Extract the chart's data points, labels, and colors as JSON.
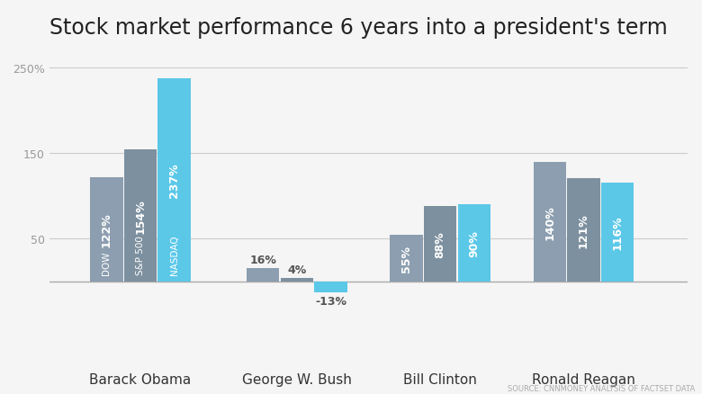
{
  "title": "Stock market performance 6 years into a president's term",
  "source": "SOURCE: CNNMONEY ANALYSIS OF FACTSET DATA",
  "background_color": "#f5f5f5",
  "presidents": [
    "Barack Obama",
    "George W. Bush",
    "Bill Clinton",
    "Ronald Reagan"
  ],
  "groups": [
    {
      "president": "Barack Obama",
      "bars": [
        {
          "label": "DOW",
          "value": 122,
          "color": "#8c9eaf"
        },
        {
          "label": "S&P 500",
          "value": 154,
          "color": "#7d909f"
        },
        {
          "label": "NASDAQ",
          "value": 237,
          "color": "#5bc8e8"
        }
      ]
    },
    {
      "president": "George W. Bush",
      "bars": [
        {
          "label": "DOW",
          "value": 16,
          "color": "#8c9eaf"
        },
        {
          "label": "S&P 500",
          "value": 4,
          "color": "#7d909f"
        },
        {
          "label": "NASDAQ",
          "value": -13,
          "color": "#5bc8e8"
        }
      ]
    },
    {
      "president": "Bill Clinton",
      "bars": [
        {
          "label": "DOW",
          "value": 55,
          "color": "#8c9eaf"
        },
        {
          "label": "S&P 500",
          "value": 88,
          "color": "#7d909f"
        },
        {
          "label": "NASDAQ",
          "value": 90,
          "color": "#5bc8e8"
        }
      ]
    },
    {
      "president": "Ronald Reagan",
      "bars": [
        {
          "label": "DOW",
          "value": 140,
          "color": "#8c9eaf"
        },
        {
          "label": "S&P 500",
          "value": 121,
          "color": "#7d909f"
        },
        {
          "label": "NASDAQ",
          "value": 116,
          "color": "#5bc8e8"
        }
      ]
    }
  ],
  "ylim": [
    -30,
    270
  ],
  "title_fontsize": 17,
  "label_fontsize": 9,
  "tick_fontsize": 9,
  "source_fontsize": 6,
  "group_centers": [
    1.6,
    4.0,
    6.2,
    8.4
  ],
  "bar_width": 0.52,
  "xlim": [
    0.2,
    10.0
  ]
}
